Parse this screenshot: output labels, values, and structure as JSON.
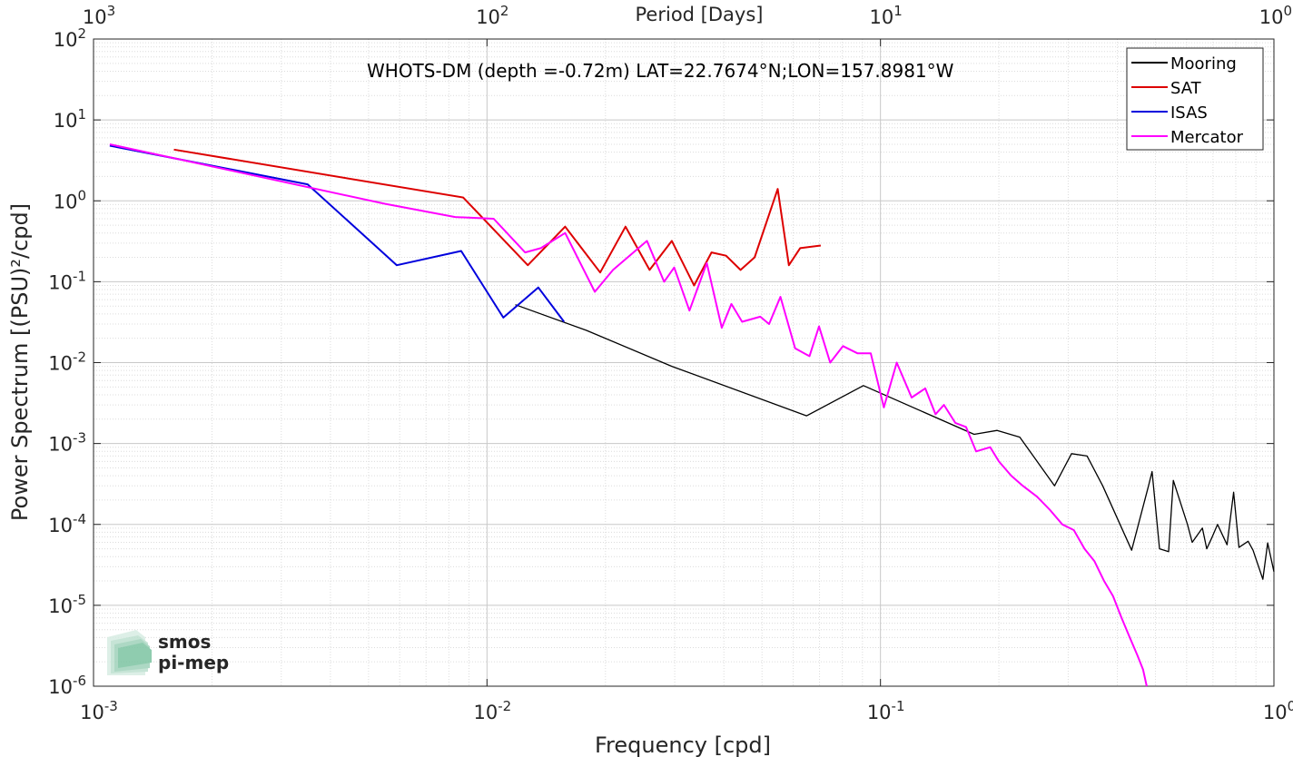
{
  "chart_data": {
    "type": "line",
    "title": "WHOTS-DM (depth =-0.72m) LAT=22.7674°N;LON=157.8981°W",
    "xlabel": "Frequency [cpd]",
    "ylabel": "Power Spectrum [(PSU)²/cpd]",
    "x2label": "Period [Days]",
    "x_scale": "log",
    "y_scale": "log",
    "xlim": [
      0.001,
      1
    ],
    "ylim": [
      1e-06,
      100
    ],
    "grid": true,
    "legend_position": "top-right",
    "x_ticks": [
      {
        "value": 0.001,
        "base": "10",
        "exp": "-3"
      },
      {
        "value": 0.01,
        "base": "10",
        "exp": "-2"
      },
      {
        "value": 0.1,
        "base": "10",
        "exp": "-1"
      },
      {
        "value": 1,
        "base": "10",
        "exp": "0"
      }
    ],
    "x2_ticks": [
      {
        "base": "10",
        "exp": "3"
      },
      {
        "base": "10",
        "exp": "2"
      },
      {
        "base": "10",
        "exp": "1"
      },
      {
        "base": "10",
        "exp": "0"
      }
    ],
    "y_ticks": [
      {
        "value": 1e-06,
        "base": "10",
        "exp": "-6"
      },
      {
        "value": 1e-05,
        "base": "10",
        "exp": "-5"
      },
      {
        "value": 0.0001,
        "base": "10",
        "exp": "-4"
      },
      {
        "value": 0.001,
        "base": "10",
        "exp": "-3"
      },
      {
        "value": 0.01,
        "base": "10",
        "exp": "-2"
      },
      {
        "value": 0.1,
        "base": "10",
        "exp": "-1"
      },
      {
        "value": 1,
        "base": "10",
        "exp": "0"
      },
      {
        "value": 10,
        "base": "10",
        "exp": "1"
      },
      {
        "value": 100,
        "base": "10",
        "exp": "2"
      }
    ],
    "series": [
      {
        "name": "Mooring",
        "color": "#000000",
        "x": [
          0.0118,
          0.0179,
          0.0295,
          0.0649,
          0.0905,
          0.173,
          0.198,
          0.226,
          0.277,
          0.306,
          0.335,
          0.367,
          0.435,
          0.48,
          0.49,
          0.512,
          0.54,
          0.555,
          0.603,
          0.62,
          0.658,
          0.675,
          0.695,
          0.719,
          0.76,
          0.79,
          0.815,
          0.86,
          0.885,
          0.937,
          0.964,
          1.0
        ],
        "y": [
          0.052,
          0.025,
          0.009,
          0.0022,
          0.0052,
          0.0013,
          0.00145,
          0.0012,
          0.0003,
          0.00075,
          0.0007,
          0.0003,
          4.8e-05,
          0.0003,
          0.00045,
          5e-05,
          4.6e-05,
          0.00035,
          0.0001,
          6e-05,
          9e-05,
          5e-05,
          6.8e-05,
          0.0001,
          5.6e-05,
          0.00025,
          5.2e-05,
          6.2e-05,
          4.8e-05,
          2.1e-05,
          5.9e-05,
          2.6e-05
        ]
      },
      {
        "name": "SAT",
        "color": "#dd0000",
        "x": [
          0.0016,
          0.0087,
          0.0127,
          0.0158,
          0.0194,
          0.0225,
          0.0259,
          0.0295,
          0.0336,
          0.0372,
          0.0405,
          0.0441,
          0.0479,
          0.0548,
          0.0585,
          0.0625,
          0.0705
        ],
        "y": [
          4.3,
          1.1,
          0.16,
          0.48,
          0.13,
          0.48,
          0.14,
          0.32,
          0.09,
          0.23,
          0.21,
          0.14,
          0.2,
          1.4,
          0.16,
          0.26,
          0.28
        ]
      },
      {
        "name": "ISAS",
        "color": "#0000dd",
        "x": [
          0.0011,
          0.0035,
          0.0059,
          0.0086,
          0.011,
          0.0135,
          0.0157
        ],
        "y": [
          4.8,
          1.6,
          0.16,
          0.24,
          0.036,
          0.085,
          0.032
        ]
      },
      {
        "name": "Mercator",
        "color": "#ff00ff",
        "x": [
          0.0011,
          0.0055,
          0.0083,
          0.0104,
          0.0125,
          0.0137,
          0.0158,
          0.0188,
          0.0209,
          0.0255,
          0.0282,
          0.0299,
          0.0327,
          0.0362,
          0.0395,
          0.0418,
          0.0445,
          0.0495,
          0.0521,
          0.0557,
          0.0607,
          0.066,
          0.0698,
          0.0745,
          0.0803,
          0.0875,
          0.0945,
          0.102,
          0.11,
          0.12,
          0.13,
          0.138,
          0.145,
          0.155,
          0.165,
          0.175,
          0.19,
          0.2,
          0.215,
          0.23,
          0.25,
          0.27,
          0.29,
          0.31,
          0.33,
          0.35,
          0.37,
          0.39,
          0.41,
          0.43,
          0.45,
          0.465,
          0.475
        ],
        "y": [
          5.0,
          0.92,
          0.63,
          0.6,
          0.23,
          0.26,
          0.4,
          0.075,
          0.14,
          0.32,
          0.1,
          0.15,
          0.044,
          0.17,
          0.027,
          0.053,
          0.032,
          0.037,
          0.03,
          0.065,
          0.015,
          0.012,
          0.028,
          0.01,
          0.016,
          0.013,
          0.013,
          0.0028,
          0.01,
          0.0037,
          0.0048,
          0.0023,
          0.003,
          0.0018,
          0.0016,
          0.0008,
          0.0009,
          0.0006,
          0.0004,
          0.0003,
          0.00022,
          0.00015,
          0.0001,
          8.5e-05,
          5e-05,
          3.5e-05,
          2e-05,
          1.3e-05,
          7e-06,
          4e-06,
          2.4e-06,
          1.6e-06,
          1e-06
        ]
      }
    ]
  },
  "logo": {
    "line1": "smos",
    "line2": "pi-mep",
    "color1": "#7cc4a2",
    "color2": "#5aa682"
  }
}
